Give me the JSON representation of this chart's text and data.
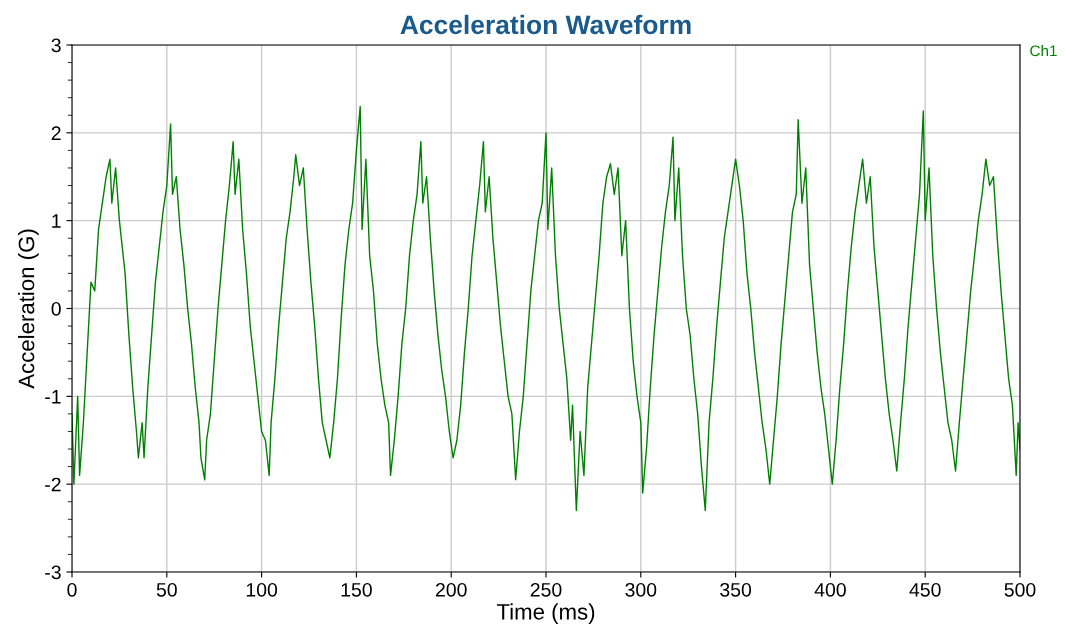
{
  "chart_data": {
    "type": "line",
    "title": "Acceleration Waveform",
    "xlabel": "Time (ms)",
    "ylabel": "Acceleration (G)",
    "xlim": [
      0,
      500
    ],
    "xticks": [
      0,
      50,
      100,
      150,
      200,
      250,
      300,
      350,
      400,
      450,
      500
    ],
    "ylim": [
      -3,
      3
    ],
    "yticks": [
      -3,
      -2,
      -1,
      0,
      1,
      2,
      3
    ],
    "grid": true,
    "legend": "top right",
    "series": [
      {
        "name": "Ch1",
        "color": "#008000",
        "line_style": "solid",
        "x": [
          0,
          1,
          3,
          4,
          6,
          8,
          10,
          12,
          14,
          16,
          18,
          20,
          21,
          23,
          25,
          28,
          30,
          32,
          34,
          35,
          37,
          38,
          40,
          42,
          44,
          46,
          48,
          50,
          52,
          53,
          55,
          57,
          59,
          61,
          63,
          65,
          67,
          68,
          70,
          71,
          73,
          75,
          77,
          79,
          81,
          83,
          85,
          86,
          88,
          90,
          92,
          94,
          96,
          98,
          100,
          102,
          104,
          105,
          107,
          109,
          111,
          113,
          115,
          117,
          118,
          120,
          122,
          124,
          126,
          128,
          130,
          132,
          134,
          136,
          138,
          140,
          142,
          144,
          146,
          148,
          150,
          152,
          153,
          155,
          157,
          159,
          161,
          163,
          165,
          167,
          168,
          170,
          172,
          174,
          176,
          178,
          180,
          182,
          184,
          185,
          187,
          189,
          191,
          193,
          195,
          197,
          199,
          201,
          203,
          205,
          207,
          209,
          211,
          213,
          215,
          217,
          218,
          220,
          222,
          224,
          226,
          228,
          230,
          232,
          234,
          236,
          238,
          240,
          242,
          244,
          246,
          248,
          250,
          251,
          253,
          255,
          257,
          259,
          261,
          263,
          264,
          266,
          268,
          270,
          272,
          274,
          276,
          278,
          280,
          282,
          284,
          286,
          288,
          290,
          292,
          294,
          296,
          298,
          300,
          301,
          303,
          305,
          307,
          309,
          311,
          313,
          315,
          317,
          318,
          320,
          322,
          324,
          326,
          328,
          330,
          332,
          334,
          336,
          338,
          340,
          342,
          344,
          346,
          348,
          350,
          352,
          354,
          356,
          358,
          360,
          362,
          364,
          366,
          368,
          370,
          372,
          374,
          376,
          378,
          380,
          382,
          383,
          385,
          387,
          389,
          391,
          393,
          395,
          397,
          399,
          401,
          403,
          405,
          407,
          409,
          411,
          413,
          415,
          417,
          419,
          421,
          423,
          425,
          427,
          429,
          431,
          433,
          435,
          437,
          439,
          441,
          443,
          445,
          447,
          449,
          450,
          452,
          454,
          456,
          458,
          460,
          462,
          464,
          466,
          468,
          470,
          472,
          474,
          476,
          478,
          480,
          482,
          484,
          486,
          488,
          490,
          492,
          494,
          496,
          498,
          499,
          500
        ],
        "values": [
          -1.2,
          -2.0,
          -1.0,
          -1.9,
          -1.3,
          -0.5,
          0.3,
          0.2,
          0.9,
          1.2,
          1.5,
          1.7,
          1.2,
          1.6,
          1.0,
          0.4,
          -0.3,
          -0.9,
          -1.4,
          -1.7,
          -1.3,
          -1.7,
          -0.9,
          -0.3,
          0.3,
          0.7,
          1.1,
          1.4,
          2.1,
          1.3,
          1.5,
          0.9,
          0.5,
          0.0,
          -0.4,
          -0.9,
          -1.3,
          -1.7,
          -1.95,
          -1.5,
          -1.2,
          -0.6,
          0.0,
          0.5,
          1.0,
          1.4,
          1.9,
          1.3,
          1.7,
          0.9,
          0.4,
          -0.2,
          -0.6,
          -1.0,
          -1.4,
          -1.5,
          -1.9,
          -1.3,
          -0.8,
          -0.2,
          0.3,
          0.8,
          1.1,
          1.5,
          1.75,
          1.4,
          1.6,
          0.9,
          0.3,
          -0.2,
          -0.8,
          -1.3,
          -1.5,
          -1.7,
          -1.3,
          -0.8,
          -0.1,
          0.5,
          0.9,
          1.2,
          1.8,
          2.3,
          0.9,
          1.7,
          0.6,
          0.2,
          -0.4,
          -0.8,
          -1.1,
          -1.3,
          -1.9,
          -1.5,
          -1.0,
          -0.4,
          0.0,
          0.6,
          1.0,
          1.3,
          1.9,
          1.2,
          1.5,
          0.8,
          0.2,
          -0.3,
          -0.7,
          -1.0,
          -1.4,
          -1.7,
          -1.5,
          -1.1,
          -0.5,
          0.0,
          0.6,
          1.0,
          1.4,
          1.9,
          1.1,
          1.5,
          0.8,
          0.3,
          -0.2,
          -0.6,
          -1.0,
          -1.2,
          -1.95,
          -1.4,
          -1.0,
          -0.4,
          0.2,
          0.6,
          1.0,
          1.2,
          2.0,
          0.9,
          1.6,
          0.6,
          0.0,
          -0.4,
          -0.8,
          -1.5,
          -1.1,
          -2.3,
          -1.4,
          -1.9,
          -0.9,
          -0.4,
          0.1,
          0.6,
          1.2,
          1.5,
          1.65,
          1.3,
          1.6,
          0.6,
          1.0,
          0.0,
          -0.6,
          -1.0,
          -1.3,
          -2.1,
          -1.6,
          -0.9,
          -0.3,
          0.2,
          0.7,
          1.1,
          1.4,
          1.95,
          1.0,
          1.6,
          0.6,
          0.0,
          -0.3,
          -0.8,
          -1.2,
          -1.8,
          -2.3,
          -1.3,
          -0.8,
          -0.2,
          0.3,
          0.8,
          1.1,
          1.4,
          1.7,
          1.4,
          1.0,
          0.4,
          0.0,
          -0.5,
          -0.9,
          -1.3,
          -1.6,
          -2.0,
          -1.5,
          -1.0,
          -0.4,
          0.1,
          0.6,
          1.1,
          1.3,
          2.15,
          1.2,
          1.6,
          0.5,
          0.0,
          -0.5,
          -0.9,
          -1.2,
          -1.6,
          -2.0,
          -1.5,
          -0.9,
          -0.4,
          0.2,
          0.7,
          1.1,
          1.4,
          1.7,
          1.2,
          1.5,
          0.7,
          0.2,
          -0.3,
          -0.8,
          -1.2,
          -1.5,
          -1.85,
          -1.3,
          -0.8,
          -0.2,
          0.3,
          0.8,
          1.3,
          2.25,
          1.0,
          1.6,
          0.6,
          0.0,
          -0.5,
          -0.9,
          -1.3,
          -1.5,
          -1.85,
          -1.3,
          -0.8,
          -0.3,
          0.2,
          0.6,
          1.0,
          1.3,
          1.7,
          1.4,
          1.5,
          0.8,
          0.2,
          -0.3,
          -0.8,
          -1.1,
          -1.9,
          -1.3,
          -1.6
        ]
      }
    ]
  }
}
